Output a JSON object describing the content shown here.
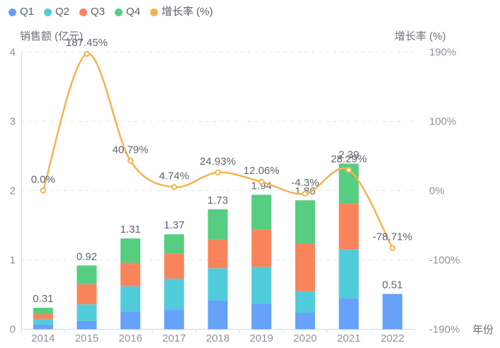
{
  "legend": {
    "position": "top-left",
    "items": [
      {
        "label": "Q1",
        "color": "#66a1fa"
      },
      {
        "label": "Q2",
        "color": "#50ccda"
      },
      {
        "label": "Q3",
        "color": "#f9845c"
      },
      {
        "label": "Q4",
        "color": "#56cd80"
      },
      {
        "label": "增长率 (%)",
        "color": "#f7b24f"
      }
    ]
  },
  "chart_data": {
    "type": "combo-stacked-bar-line",
    "categories": [
      "2014",
      "2015",
      "2016",
      "2017",
      "2018",
      "2019",
      "2020",
      "2021",
      "2022"
    ],
    "bar_series": [
      {
        "name": "Q1",
        "color": "#66a1fa",
        "values": [
          0.07,
          0.12,
          0.25,
          0.28,
          0.42,
          0.37,
          0.24,
          0.45,
          0.51
        ]
      },
      {
        "name": "Q2",
        "color": "#50ccda",
        "values": [
          0.08,
          0.24,
          0.37,
          0.45,
          0.46,
          0.53,
          0.31,
          0.7,
          0
        ]
      },
      {
        "name": "Q3",
        "color": "#f9845c",
        "values": [
          0.07,
          0.29,
          0.34,
          0.36,
          0.42,
          0.54,
          0.69,
          0.66,
          0
        ]
      },
      {
        "name": "Q4",
        "color": "#56cd80",
        "values": [
          0.09,
          0.27,
          0.35,
          0.28,
          0.43,
          0.5,
          0.62,
          0.58,
          0
        ]
      }
    ],
    "bar_totals": [
      0.31,
      0.92,
      1.31,
      1.37,
      1.73,
      1.94,
      1.86,
      2.39,
      0.51
    ],
    "bar_total_labels": [
      "0.31",
      "0.92",
      "1.31",
      "1.37",
      "1.73",
      "1.94",
      "1.86",
      "2.39",
      "0.51"
    ],
    "line_series": {
      "name": "增长率 (%)",
      "color": "#f7b24f",
      "values": [
        0.0,
        187.45,
        40.79,
        4.74,
        24.93,
        12.06,
        -4.3,
        28.29,
        -78.71
      ],
      "labels": [
        "0.0%",
        "187.45%",
        "40.79%",
        "4.74%",
        "24.93%",
        "12.06%",
        "-4.3%",
        "28.29%",
        "-78.71%"
      ],
      "marker": "empty-circle",
      "smooth": true
    },
    "left_axis": {
      "title": "销售额 (亿元)",
      "min": 0,
      "max": 4,
      "tick_labels": [
        "4",
        "3",
        "2",
        "1",
        "0"
      ]
    },
    "right_axis": {
      "title": "增长率 (%)",
      "min": -190,
      "max": 190,
      "tick_labels": [
        "190%",
        "100%",
        "0%",
        "-100%",
        "-190%"
      ]
    },
    "x_axis": {
      "name": "年份"
    },
    "grid": {
      "horizontal_dashed": true,
      "gridline_color": "#e0e6f1",
      "axis_line_color": "#d4dae4"
    },
    "background_color": "#ffffff"
  }
}
